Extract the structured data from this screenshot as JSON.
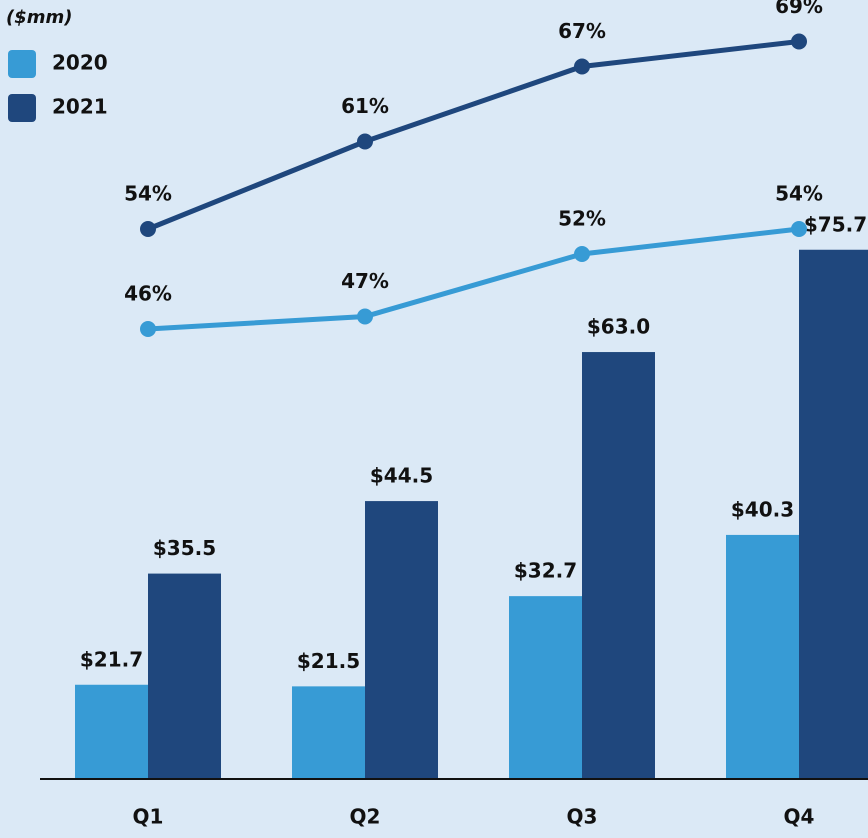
{
  "chart_data": {
    "type": "bar",
    "subtitle": "($mm)",
    "categories": [
      "Q1",
      "Q2",
      "Q3",
      "Q4"
    ],
    "series": [
      {
        "name": "2020",
        "color": "#379bd5",
        "values": [
          21.7,
          21.5,
          32.7,
          40.3
        ],
        "value_labels": [
          "$21.7",
          "$21.5",
          "$32.7",
          "$40.3"
        ]
      },
      {
        "name": "2021",
        "color": "#1f477d",
        "values": [
          35.5,
          44.5,
          63.0,
          75.7
        ],
        "value_labels": [
          "$35.5",
          "$44.5",
          "$63.0",
          "$75.7"
        ]
      },
      {
        "type": "line",
        "axis": "y2",
        "color": "#379bd5",
        "values": [
          46,
          47,
          52,
          54
        ],
        "value_labels": [
          "46%",
          "47%",
          "52%",
          "54%"
        ]
      },
      {
        "type": "line",
        "axis": "y2",
        "color": "#1f477d",
        "values": [
          54,
          61,
          67,
          69
        ],
        "value_labels": [
          "54%",
          "61%",
          "67%",
          "69%"
        ]
      }
    ],
    "ylim": [
      10,
      100
    ],
    "y2lim": [
      10,
      68
    ],
    "legend": "top-left"
  }
}
